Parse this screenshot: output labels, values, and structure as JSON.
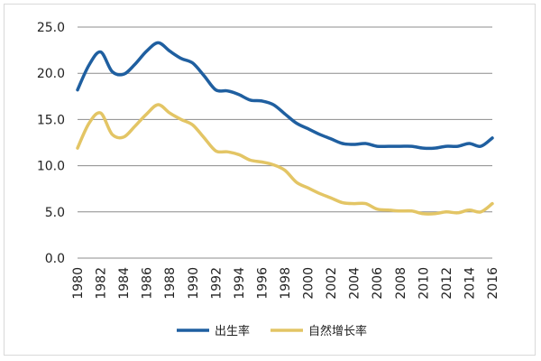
{
  "chart_data": {
    "type": "line",
    "title": "",
    "xlabel": "",
    "ylabel": "",
    "ylim": [
      0,
      25
    ],
    "y_ticks": [
      "0.0",
      "5.0",
      "10.0",
      "15.0",
      "20.0",
      "25.0"
    ],
    "x": [
      1980,
      1981,
      1982,
      1983,
      1984,
      1985,
      1986,
      1987,
      1988,
      1989,
      1990,
      1991,
      1992,
      1993,
      1994,
      1995,
      1996,
      1997,
      1998,
      1999,
      2000,
      2001,
      2002,
      2003,
      2004,
      2005,
      2006,
      2007,
      2008,
      2009,
      2010,
      2011,
      2012,
      2013,
      2014,
      2015,
      2016
    ],
    "x_ticks": [
      "1980",
      "1982",
      "1984",
      "1986",
      "1988",
      "1990",
      "1992",
      "1994",
      "1996",
      "1998",
      "2000",
      "2002",
      "2004",
      "2006",
      "2008",
      "2010",
      "2012",
      "2014",
      "2016"
    ],
    "grid": true,
    "legend_position": "bottom",
    "series": [
      {
        "name": "出生率",
        "color": "#1f5fa0",
        "values": [
          18.2,
          20.9,
          22.3,
          20.2,
          19.9,
          21.0,
          22.4,
          23.3,
          22.4,
          21.6,
          21.1,
          19.7,
          18.2,
          18.1,
          17.7,
          17.1,
          17.0,
          16.6,
          15.6,
          14.6,
          14.0,
          13.4,
          12.9,
          12.4,
          12.3,
          12.4,
          12.1,
          12.1,
          12.1,
          12.1,
          11.9,
          11.9,
          12.1,
          12.1,
          12.4,
          12.1,
          13.0
        ]
      },
      {
        "name": "自然增长率",
        "color": "#e3c565",
        "values": [
          11.9,
          14.6,
          15.7,
          13.4,
          13.1,
          14.3,
          15.6,
          16.6,
          15.7,
          15.0,
          14.4,
          13.0,
          11.6,
          11.5,
          11.2,
          10.6,
          10.4,
          10.1,
          9.5,
          8.2,
          7.6,
          7.0,
          6.5,
          6.0,
          5.9,
          5.9,
          5.3,
          5.2,
          5.1,
          5.1,
          4.8,
          4.8,
          5.0,
          4.9,
          5.2,
          5.0,
          5.9
        ]
      }
    ]
  }
}
